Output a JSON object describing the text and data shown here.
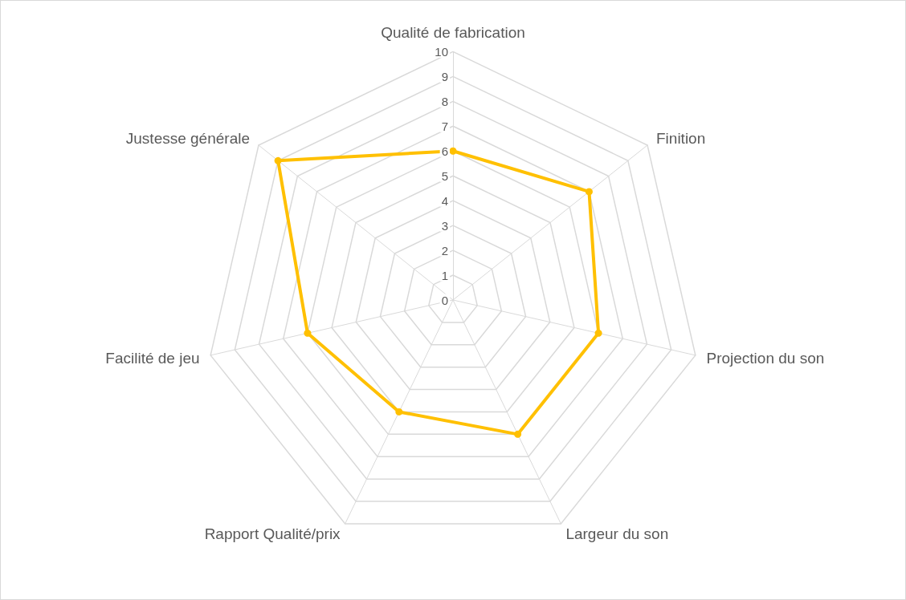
{
  "chart_data": {
    "type": "radar",
    "categories": [
      "Qualité de fabrication",
      "Finition",
      "Projection du son",
      "Largeur du son",
      "Rapport Qualité/prix",
      "Facilité de jeu",
      "Justesse générale"
    ],
    "series": [
      {
        "color": "#ffc000",
        "values": [
          6,
          7,
          6,
          6,
          5,
          6,
          9
        ]
      }
    ],
    "ylim": [
      0,
      10
    ],
    "yticks": [
      0,
      1,
      2,
      3,
      4,
      5,
      6,
      7,
      8,
      9,
      10
    ],
    "grid": true,
    "marker": "circle",
    "legend": false
  }
}
